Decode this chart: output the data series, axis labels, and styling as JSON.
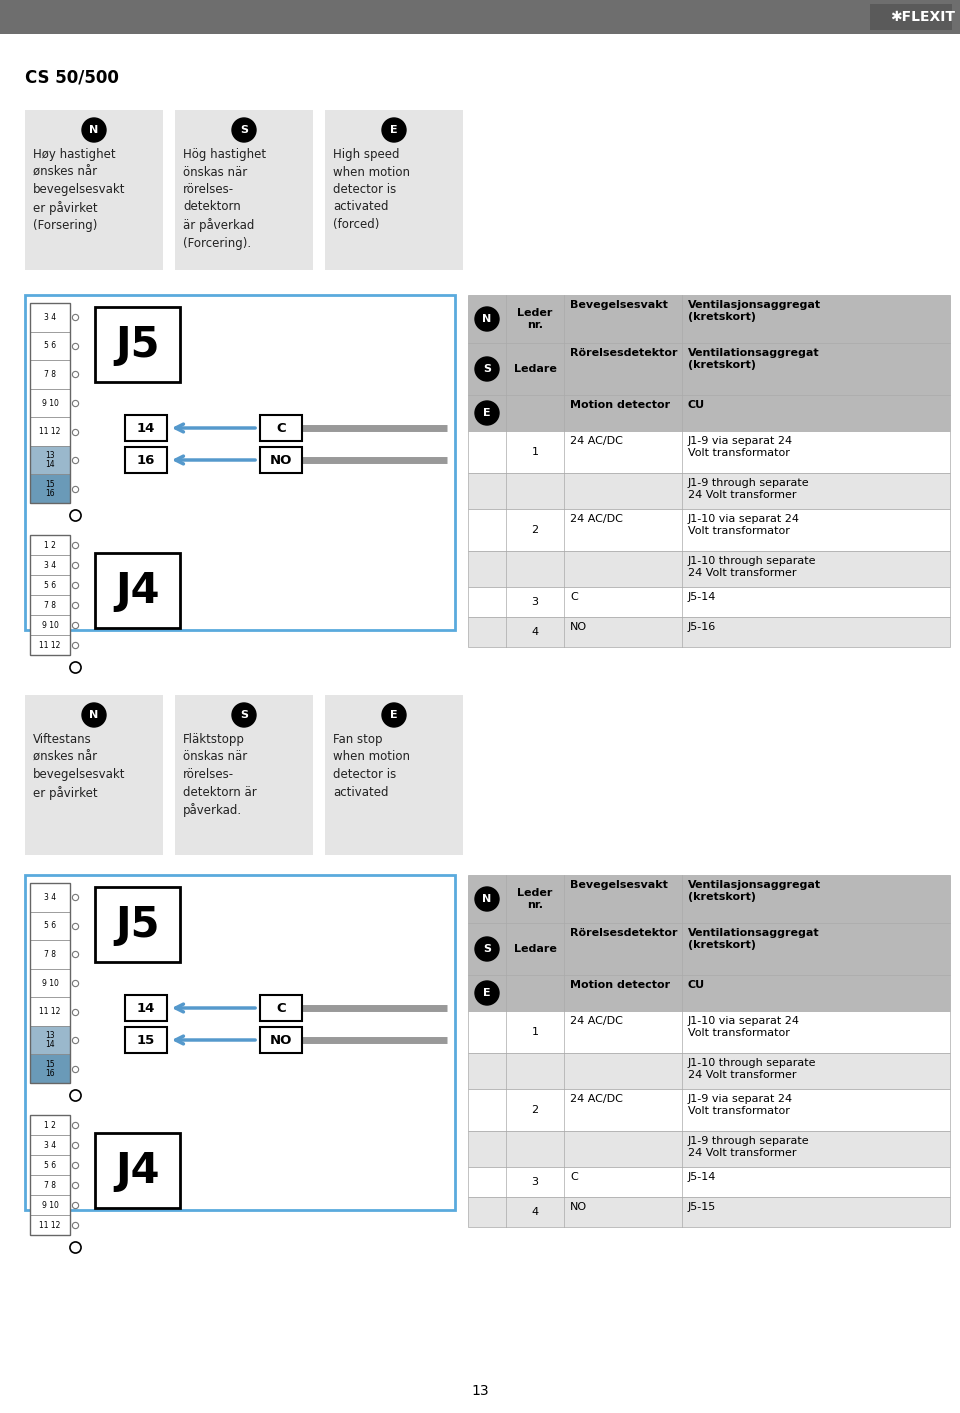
{
  "title": "CS 50/500",
  "bg_color": "#ffffff",
  "header_bg": "#6e6e6e",
  "page_number": "13",
  "section1_boxes": [
    {
      "letter": "N",
      "text": "Høy hastighet\nønskes når\nbevegelsesvakt\ner påvirket\n(Forsering)"
    },
    {
      "letter": "S",
      "text": "Hög hastighet\nönskas när\nrörelses-\ndetektorn\när påverkad\n(Forcering)."
    },
    {
      "letter": "E",
      "text": "High speed\nwhen motion\ndetector is\nactivated\n(forced)"
    }
  ],
  "section2_boxes": [
    {
      "letter": "N",
      "text": "Viftestans\nønskes når\nbevegelsesvakt\ner påvirket"
    },
    {
      "letter": "S",
      "text": "Fläktstopp\nönskas när\nrörelses-\ndetektorn är\npåverkad."
    },
    {
      "letter": "E",
      "text": "Fan stop\nwhen motion\ndetector is\nactivated"
    }
  ],
  "table1_rows": [
    {
      "icon": "N",
      "col1": "Leder\nnr.",
      "col2": "Bevegelsesvakt",
      "col3": "Ventilasjonsaggregat\n(kretskort)",
      "bold": true
    },
    {
      "icon": "S",
      "col1": "Ledare",
      "col2": "Rörelsesdetektor",
      "col3": "Ventilationsaggregat\n(kretskort)",
      "bold": true
    },
    {
      "icon": "E",
      "col1": "",
      "col2": "Motion detector",
      "col3": "CU",
      "bold": true
    },
    {
      "icon": "",
      "col1": "1",
      "col2": "24 AC/DC",
      "col3": "J1-9 via separat 24\nVolt transformator",
      "bold": false
    },
    {
      "icon": "",
      "col1": "",
      "col2": "",
      "col3": "J1-9 through separate\n24 Volt transformer",
      "bold": false
    },
    {
      "icon": "",
      "col1": "2",
      "col2": "24 AC/DC",
      "col3": "J1-10 via separat 24\nVolt transformator",
      "bold": false
    },
    {
      "icon": "",
      "col1": "",
      "col2": "",
      "col3": "J1-10 through separate\n24 Volt transformer",
      "bold": false
    },
    {
      "icon": "",
      "col1": "3",
      "col2": "C",
      "col3": "J5-14",
      "bold": false
    },
    {
      "icon": "",
      "col1": "4",
      "col2": "NO",
      "col3": "J5-16",
      "bold": false
    }
  ],
  "table2_rows": [
    {
      "icon": "N",
      "col1": "Leder\nnr.",
      "col2": "Bevegelsesvakt",
      "col3": "Ventilasjonsaggregat\n(kretskort)",
      "bold": true
    },
    {
      "icon": "S",
      "col1": "Ledare",
      "col2": "Rörelsesdetektor",
      "col3": "Ventilationsaggregat\n(kretskort)",
      "bold": true
    },
    {
      "icon": "E",
      "col1": "",
      "col2": "Motion detector",
      "col3": "CU",
      "bold": true
    },
    {
      "icon": "",
      "col1": "1",
      "col2": "24 AC/DC",
      "col3": "J1-10 via separat 24\nVolt transformator",
      "bold": false
    },
    {
      "icon": "",
      "col1": "",
      "col2": "",
      "col3": "J1-10 through separate\n24 Volt transformer",
      "bold": false
    },
    {
      "icon": "",
      "col1": "2",
      "col2": "24 AC/DC",
      "col3": "J1-9 via separat 24\nVolt transformator",
      "bold": false
    },
    {
      "icon": "",
      "col1": "",
      "col2": "",
      "col3": "J1-9 through separate\n24 Volt transformer",
      "bold": false
    },
    {
      "icon": "",
      "col1": "3",
      "col2": "C",
      "col3": "J5-14",
      "bold": false
    },
    {
      "icon": "",
      "col1": "4",
      "col2": "NO",
      "col3": "J5-15",
      "bold": false
    }
  ],
  "diag1_terminals_top": [
    "3 4",
    "5 6",
    "7 8",
    "9 10",
    "11 12",
    "13|14",
    "15|16"
  ],
  "diag1_terminals_bot": [
    "1 2",
    "3 4",
    "5 6",
    "7 8",
    "9 10",
    "11 12"
  ],
  "diag2_terminals_top": [
    "3 4",
    "5 6",
    "7 8",
    "9 10",
    "11 12",
    "13|14",
    "15|16"
  ],
  "diag2_terminals_bot": [
    "1 2",
    "3 4",
    "5 6",
    "7 8",
    "9 10",
    "11 12"
  ],
  "gray_light": "#e5e5e5",
  "gray_mid": "#b8b8b8",
  "gray_dark": "#8c8c8c",
  "blue_border": "#5aaadd",
  "arrow_color": "#5599cc",
  "wire_color": "#999999",
  "text_color": "#222222"
}
